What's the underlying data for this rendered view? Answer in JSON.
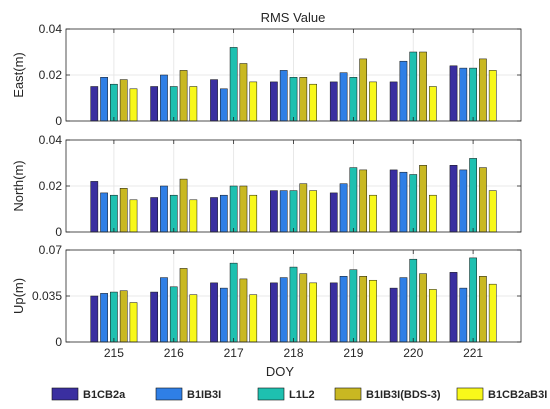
{
  "chart_data": {
    "type": "bar",
    "title": "RMS Value",
    "xlabel": "DOY",
    "categories": [
      "215",
      "216",
      "217",
      "218",
      "219",
      "220",
      "221"
    ],
    "colors": [
      "#3a2fa0",
      "#2f7fe6",
      "#1ec0b0",
      "#c9b822",
      "#f8f81a"
    ],
    "legend": {
      "placement": "bottom",
      "entries": [
        "B1CB2a",
        "B1IB3I",
        "L1L2",
        "B1IB3I(BDS-3)",
        "B1CB2aB3I"
      ]
    },
    "grid": true,
    "panels": [
      {
        "ylabel": "East(m)",
        "ylim": [
          0,
          0.04
        ],
        "yticks": [
          0,
          0.02,
          0.04
        ],
        "yticklabels": [
          "0",
          "0.02",
          "0.04"
        ],
        "series": [
          {
            "values": [
              0.015,
              0.015,
              0.018,
              0.017,
              0.017,
              0.017,
              0.024
            ]
          },
          {
            "values": [
              0.019,
              0.02,
              0.014,
              0.022,
              0.021,
              0.026,
              0.023
            ]
          },
          {
            "values": [
              0.016,
              0.015,
              0.032,
              0.019,
              0.019,
              0.03,
              0.023
            ]
          },
          {
            "values": [
              0.018,
              0.022,
              0.025,
              0.019,
              0.027,
              0.03,
              0.027
            ]
          },
          {
            "values": [
              0.014,
              0.015,
              0.017,
              0.016,
              0.017,
              0.015,
              0.022
            ]
          }
        ]
      },
      {
        "ylabel": "North(m)",
        "ylim": [
          0,
          0.04
        ],
        "yticks": [
          0,
          0.02,
          0.04
        ],
        "yticklabels": [
          "0",
          "0.02",
          "0.04"
        ],
        "series": [
          {
            "values": [
              0.022,
              0.015,
              0.015,
              0.018,
              0.017,
              0.027,
              0.029
            ]
          },
          {
            "values": [
              0.017,
              0.02,
              0.016,
              0.018,
              0.021,
              0.026,
              0.027
            ]
          },
          {
            "values": [
              0.016,
              0.016,
              0.02,
              0.018,
              0.028,
              0.025,
              0.032
            ]
          },
          {
            "values": [
              0.019,
              0.023,
              0.02,
              0.021,
              0.027,
              0.029,
              0.028
            ]
          },
          {
            "values": [
              0.014,
              0.014,
              0.016,
              0.018,
              0.016,
              0.016,
              0.018
            ]
          }
        ]
      },
      {
        "ylabel": "Up(m)",
        "ylim": [
          0,
          0.07
        ],
        "yticks": [
          0,
          0.035,
          0.07
        ],
        "yticklabels": [
          "0",
          "0.035",
          "0.07"
        ],
        "series": [
          {
            "values": [
              0.035,
              0.038,
              0.045,
              0.045,
              0.045,
              0.041,
              0.053
            ]
          },
          {
            "values": [
              0.037,
              0.049,
              0.041,
              0.049,
              0.05,
              0.049,
              0.041
            ]
          },
          {
            "values": [
              0.038,
              0.042,
              0.06,
              0.057,
              0.055,
              0.063,
              0.064
            ]
          },
          {
            "values": [
              0.039,
              0.056,
              0.048,
              0.052,
              0.05,
              0.052,
              0.05
            ]
          },
          {
            "values": [
              0.03,
              0.036,
              0.036,
              0.045,
              0.047,
              0.04,
              0.044
            ]
          }
        ]
      }
    ]
  }
}
